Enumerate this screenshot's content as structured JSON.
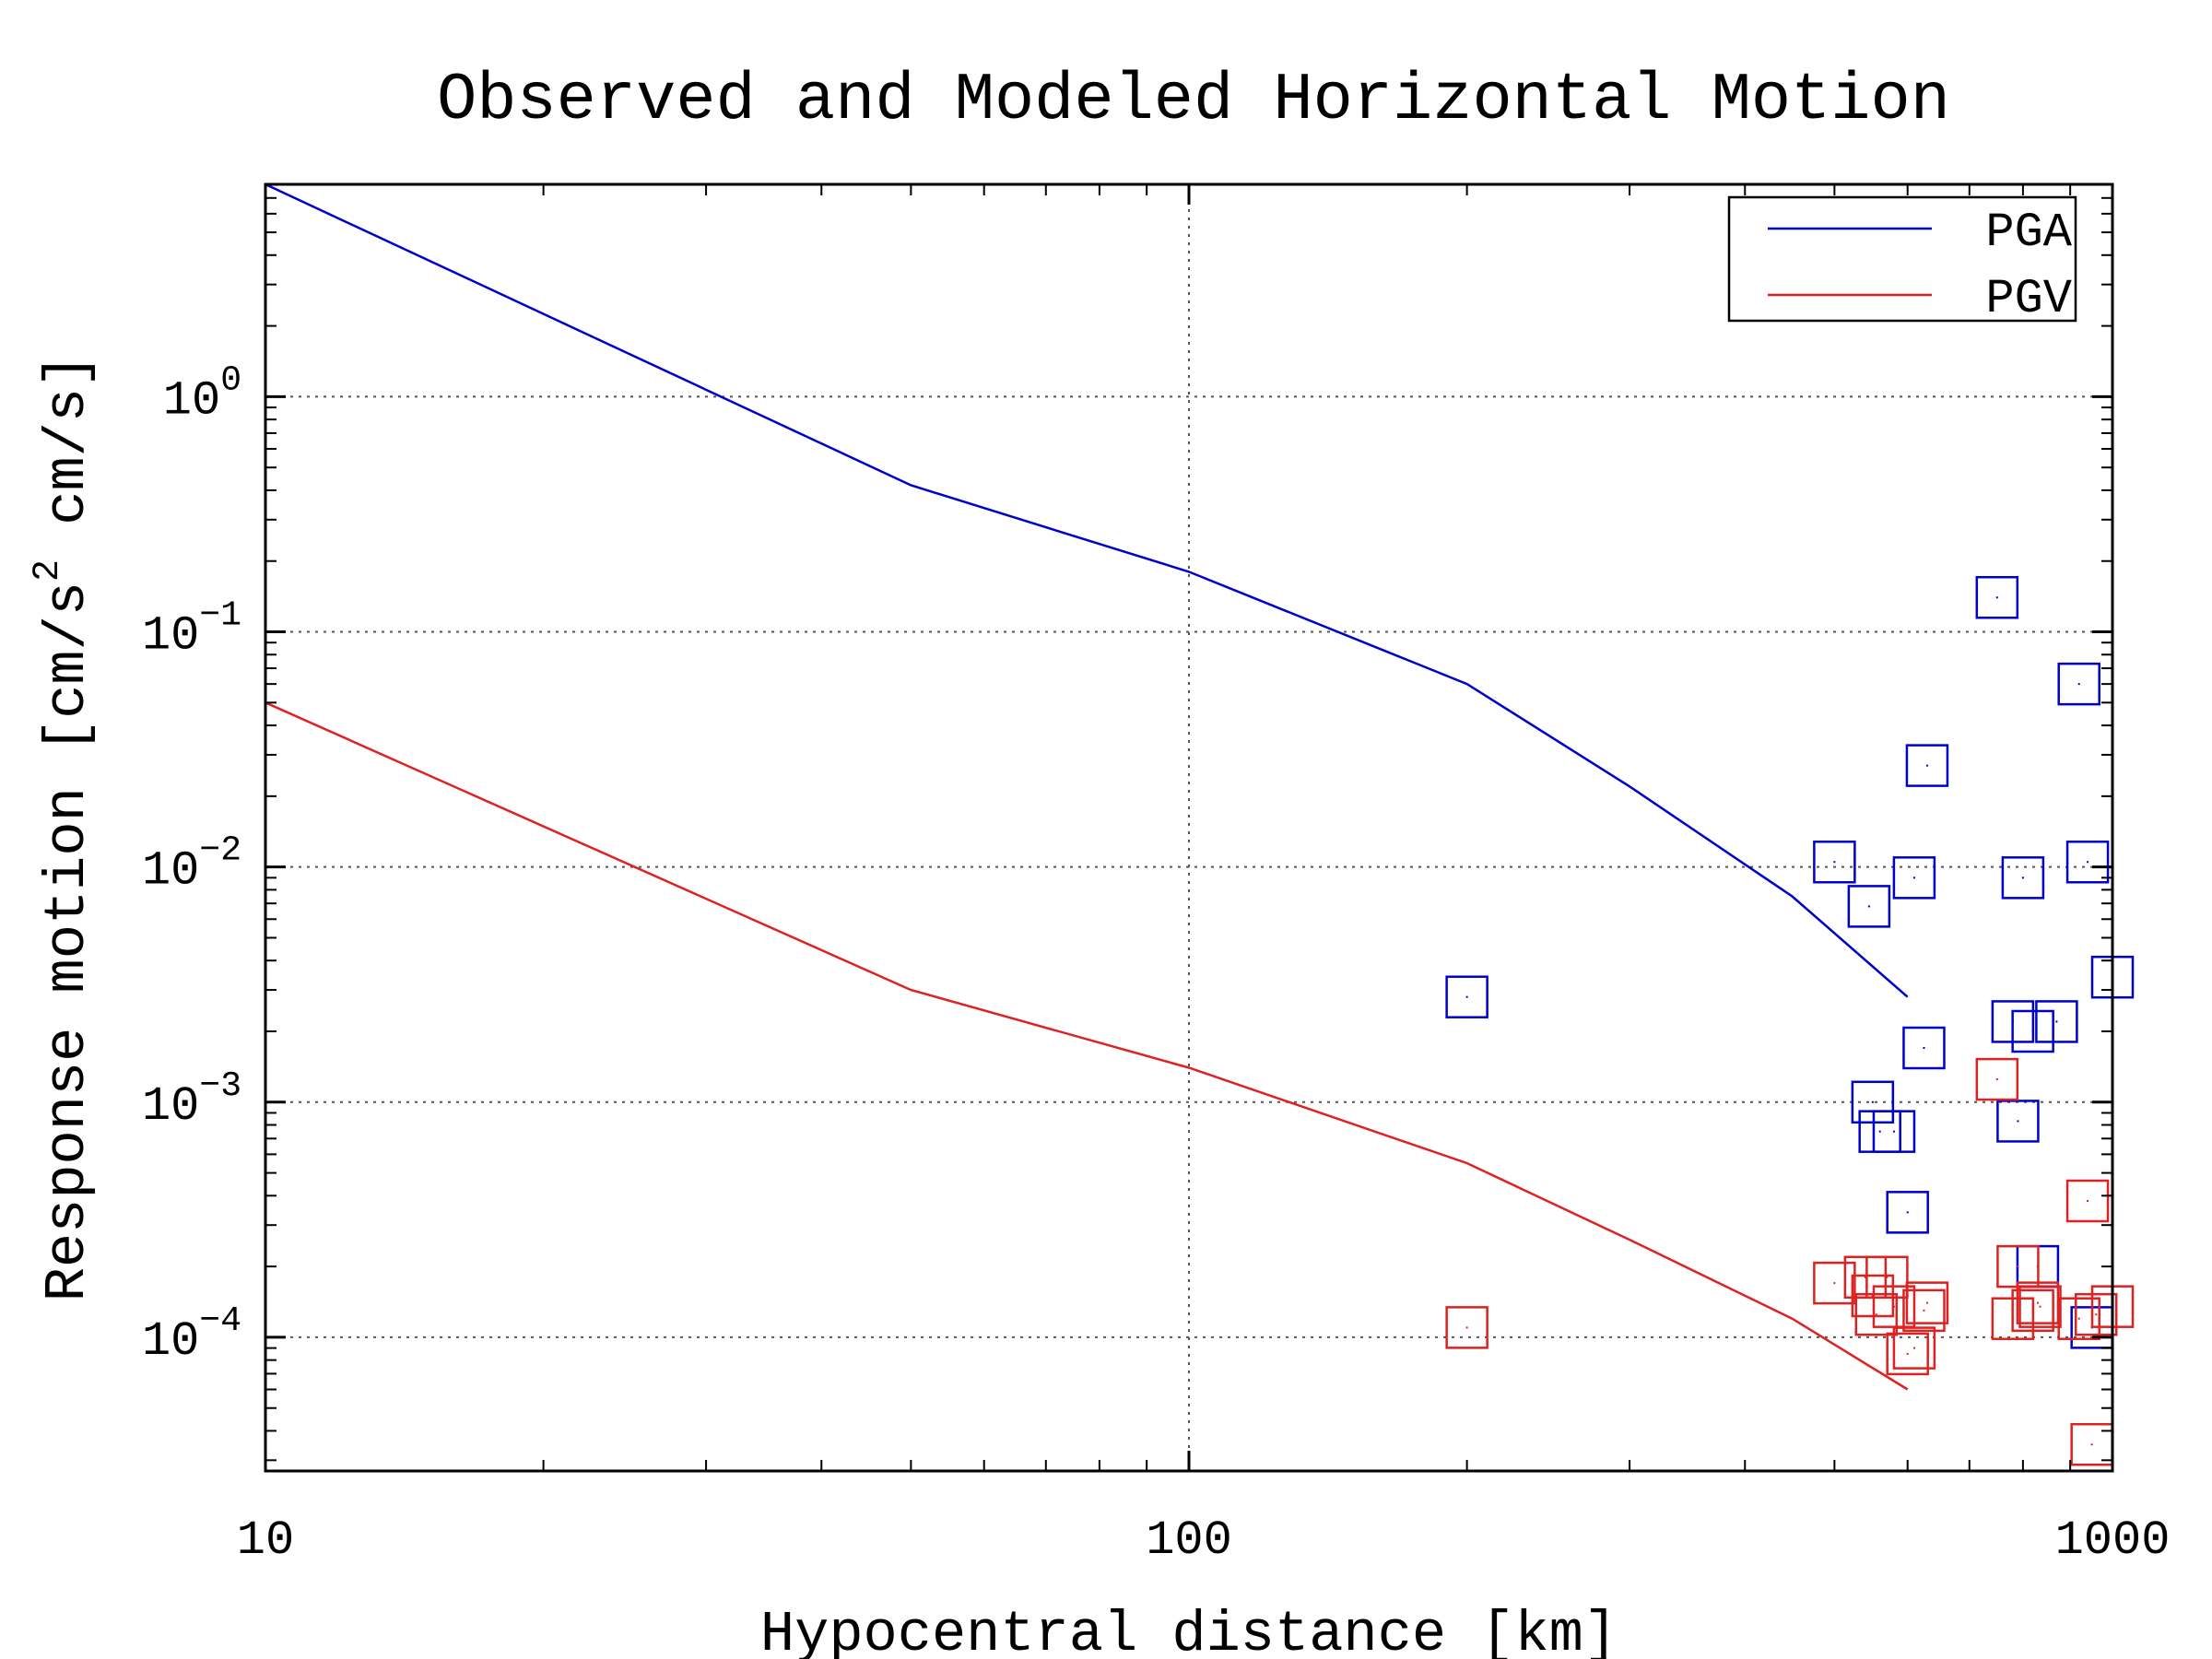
{
  "chart_data": {
    "type": "line",
    "title": "Observed and Modeled Horizontal Motion",
    "xlabel": "Hypocentral distance [km]",
    "ylabel_parts": [
      "Response motion [cm/s",
      "2",
      " cm/s]"
    ],
    "x_scale": "log",
    "y_scale": "log",
    "xlim": [
      10,
      1000
    ],
    "ylim": [
      2.7e-05,
      8
    ],
    "x_ticks": [
      {
        "value": 10,
        "label": "10"
      },
      {
        "value": 100,
        "label": "100"
      },
      {
        "value": 1000,
        "label": "1000"
      }
    ],
    "y_ticks": [
      {
        "value": 1,
        "base": "10",
        "exp": "0"
      },
      {
        "value": 0.1,
        "base": "10",
        "exp": "−1"
      },
      {
        "value": 0.01,
        "base": "10",
        "exp": "−2"
      },
      {
        "value": 0.001,
        "base": "10",
        "exp": "−3"
      },
      {
        "value": 0.0001,
        "base": "10",
        "exp": "−4"
      }
    ],
    "grid": true,
    "legend_position": "top-right",
    "series": [
      {
        "name": "PGA",
        "color": "#0000cc",
        "model_x": [
          10,
          50,
          100,
          200,
          300,
          450,
          600
        ],
        "model_y": [
          8.0,
          0.42,
          0.18,
          0.06,
          0.022,
          0.0075,
          0.0028
        ],
        "observed_x": [
          200,
          500,
          545,
          550,
          560,
          580,
          600,
          610,
          625,
          630,
          750,
          780,
          790,
          800,
          820,
          830,
          870,
          920,
          940,
          950,
          1000
        ],
        "observed_y": [
          0.0028,
          0.0105,
          0.0068,
          0.001,
          0.00075,
          0.00075,
          0.00034,
          0.009,
          0.0017,
          0.027,
          0.14,
          0.0022,
          0.00083,
          0.009,
          0.002,
          0.0002,
          0.0022,
          0.06,
          0.0105,
          0.00011,
          0.0034
        ]
      },
      {
        "name": "PGV",
        "color": "#dd2222",
        "model_x": [
          10,
          50,
          100,
          200,
          300,
          450,
          600
        ],
        "model_y": [
          0.05,
          0.003,
          0.0014,
          0.00055,
          0.00026,
          0.00012,
          6e-05
        ],
        "observed_x": [
          200,
          500,
          540,
          550,
          555,
          570,
          580,
          600,
          610,
          625,
          630,
          750,
          780,
          790,
          820,
          830,
          835,
          920,
          940,
          950,
          960,
          1000
        ],
        "observed_y": [
          0.00011,
          0.00017,
          0.00018,
          0.00015,
          0.000125,
          0.00018,
          0.000135,
          8.5e-05,
          9e-05,
          0.00013,
          0.00014,
          0.00125,
          0.00012,
          0.0002,
          0.00013,
          0.00014,
          0.000135,
          0.00012,
          0.00038,
          3.5e-05,
          0.000125,
          0.000135
        ]
      }
    ]
  }
}
